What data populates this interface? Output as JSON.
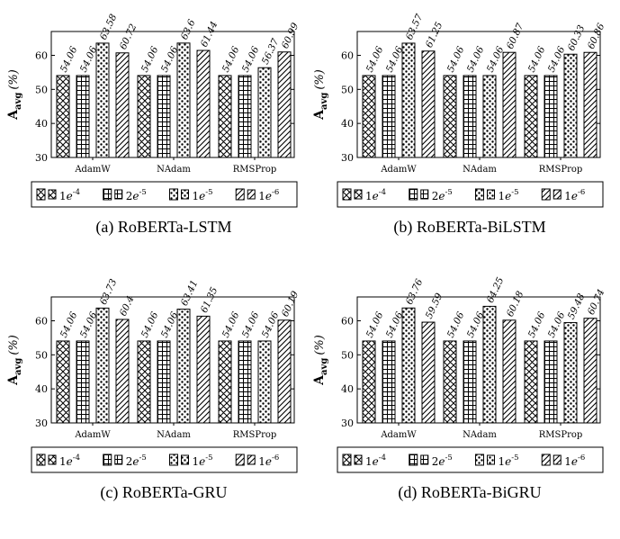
{
  "chart_data": [
    {
      "type": "bar",
      "caption": "(a) RoBERTa-LSTM",
      "categories": [
        "AdamW",
        "NAdam",
        "RMSProp"
      ],
      "ylabel": "A",
      "ylabel_sub": "avg",
      "ylabel_unit": "(%)",
      "ylim": [
        30,
        67
      ],
      "yticks": [
        30,
        40,
        50,
        60
      ],
      "series": [
        {
          "name": "1e-4",
          "pattern": "crosshatch",
          "values": [
            54.06,
            54.06,
            54.06
          ],
          "labels": [
            "54.06",
            "54.06",
            "54.06"
          ]
        },
        {
          "name": "2e-5",
          "pattern": "grid",
          "values": [
            54.06,
            54.06,
            54.06
          ],
          "labels": [
            "54.06",
            "54.06",
            "54.06"
          ]
        },
        {
          "name": "1e-5",
          "pattern": "dots",
          "values": [
            63.58,
            63.6,
            56.37
          ],
          "labels": [
            "63.58",
            "63.6",
            "56.37"
          ]
        },
        {
          "name": "1e-6",
          "pattern": "diagonal",
          "values": [
            60.72,
            61.44,
            60.99
          ],
          "labels": [
            "60.72",
            "61.44",
            "60.99"
          ]
        }
      ]
    },
    {
      "type": "bar",
      "caption": "(b) RoBERTa-BiLSTM",
      "categories": [
        "AdamW",
        "NAdam",
        "RMSProp"
      ],
      "ylabel": "A",
      "ylabel_sub": "avg",
      "ylabel_unit": "(%)",
      "ylim": [
        30,
        67
      ],
      "yticks": [
        30,
        40,
        50,
        60
      ],
      "series": [
        {
          "name": "1e-4",
          "pattern": "crosshatch",
          "values": [
            54.06,
            54.06,
            54.06
          ],
          "labels": [
            "54.06",
            "54.06",
            "54.06"
          ]
        },
        {
          "name": "2e-5",
          "pattern": "grid",
          "values": [
            54.06,
            54.06,
            54.06
          ],
          "labels": [
            "54.06",
            "54.06",
            "54.06"
          ]
        },
        {
          "name": "1e-5",
          "pattern": "dots",
          "values": [
            63.57,
            54.06,
            60.33
          ],
          "labels": [
            "63.57",
            "54.06",
            "60.33"
          ]
        },
        {
          "name": "1e-6",
          "pattern": "diagonal",
          "values": [
            61.25,
            60.87,
            60.86
          ],
          "labels": [
            "61.25",
            "60.87",
            "60.86"
          ]
        }
      ]
    },
    {
      "type": "bar",
      "caption": "(c) RoBERTa-GRU",
      "categories": [
        "AdamW",
        "NAdam",
        "RMSProp"
      ],
      "ylabel": "A",
      "ylabel_sub": "avg",
      "ylabel_unit": "(%)",
      "ylim": [
        30,
        67
      ],
      "yticks": [
        30,
        40,
        50,
        60
      ],
      "series": [
        {
          "name": "1e-4",
          "pattern": "crosshatch",
          "values": [
            54.06,
            54.06,
            54.06
          ],
          "labels": [
            "54.06",
            "54.06",
            "54.06"
          ]
        },
        {
          "name": "2e-5",
          "pattern": "grid",
          "values": [
            54.06,
            54.06,
            54.06
          ],
          "labels": [
            "54.06",
            "54.06",
            "54.06"
          ]
        },
        {
          "name": "1e-5",
          "pattern": "dots",
          "values": [
            63.73,
            63.41,
            54.06
          ],
          "labels": [
            "63.73",
            "63.41",
            "54.06"
          ]
        },
        {
          "name": "1e-6",
          "pattern": "diagonal",
          "values": [
            60.4,
            61.35,
            60.19
          ],
          "labels": [
            "60.4",
            "61.35",
            "60.19"
          ]
        }
      ]
    },
    {
      "type": "bar",
      "caption": "(d) RoBERTa-BiGRU",
      "categories": [
        "AdamW",
        "NAdam",
        "RMSProp"
      ],
      "ylabel": "A",
      "ylabel_sub": "avg",
      "ylabel_unit": "(%)",
      "ylim": [
        30,
        67
      ],
      "yticks": [
        30,
        40,
        50,
        60
      ],
      "series": [
        {
          "name": "1e-4",
          "pattern": "crosshatch",
          "values": [
            54.06,
            54.06,
            54.06
          ],
          "labels": [
            "54.06",
            "54.06",
            "54.06"
          ]
        },
        {
          "name": "2e-5",
          "pattern": "grid",
          "values": [
            54.06,
            54.06,
            54.06
          ],
          "labels": [
            "54.06",
            "54.06",
            "54.06"
          ]
        },
        {
          "name": "1e-5",
          "pattern": "dots",
          "values": [
            63.76,
            64.25,
            59.48
          ],
          "labels": [
            "63.76",
            "64.25",
            "59.48"
          ]
        },
        {
          "name": "1e-6",
          "pattern": "diagonal",
          "values": [
            59.59,
            60.18,
            60.74
          ],
          "labels": [
            "59.59",
            "60.18",
            "60.74"
          ]
        }
      ]
    }
  ]
}
